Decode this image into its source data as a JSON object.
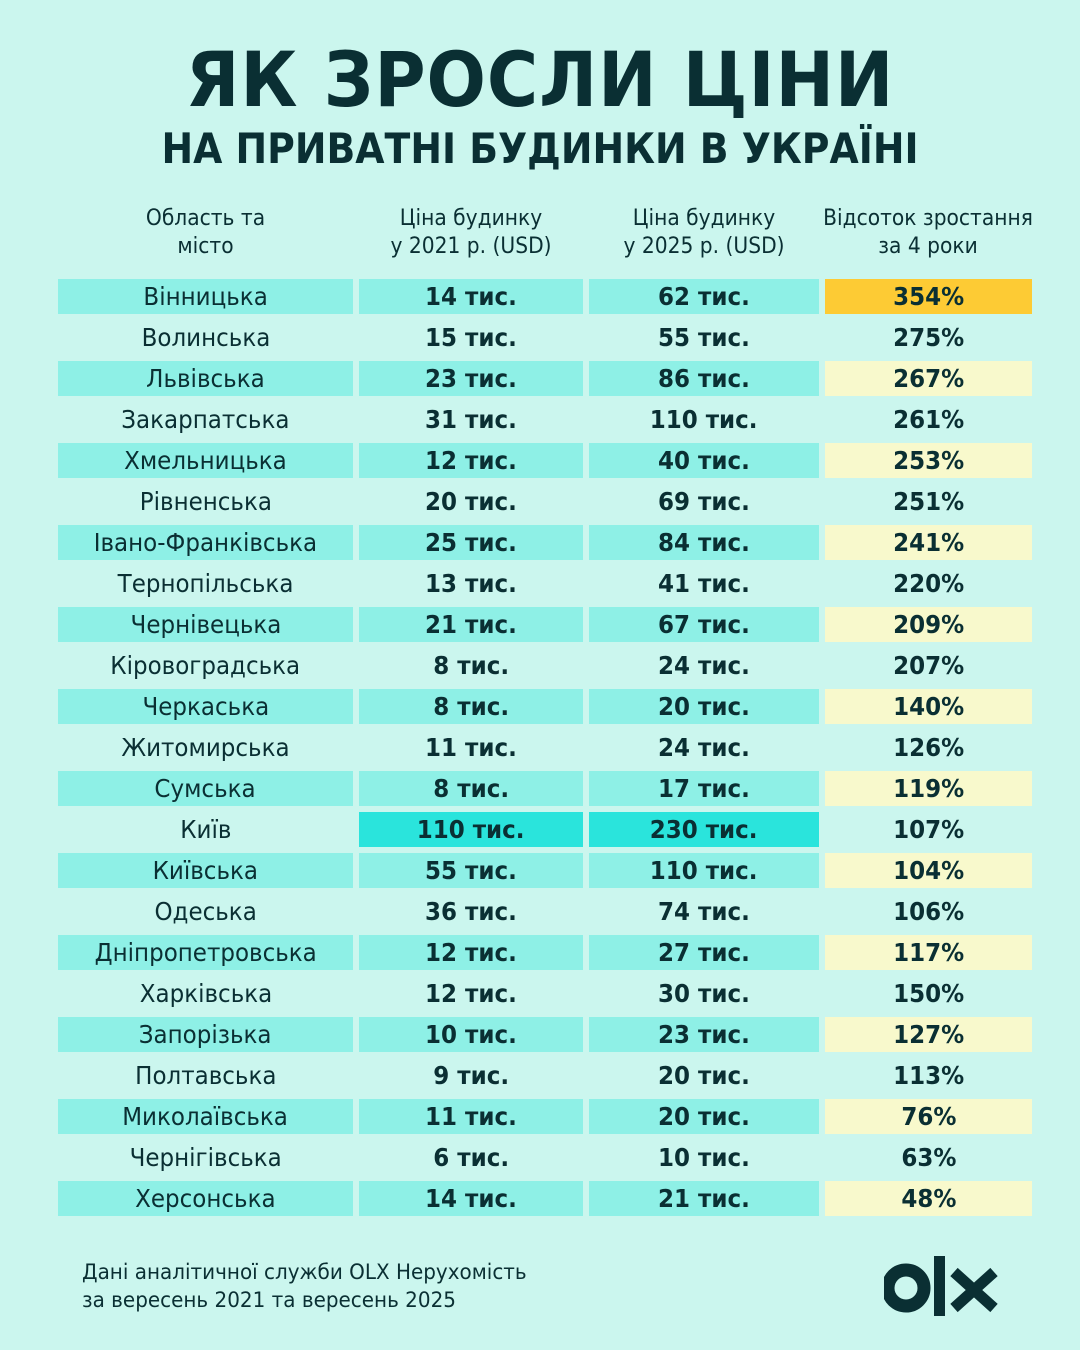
{
  "header": {
    "title": "ЯК ЗРОСЛИ ЦІНИ",
    "subtitle": "НА ПРИВАТНІ БУДИНКИ В УКРАЇНІ"
  },
  "columns": [
    {
      "line1": "Область та",
      "line2": "місто"
    },
    {
      "line1": "Ціна будинку",
      "line2": "у 2021 р. (USD)"
    },
    {
      "line1": "Ціна будинку",
      "line2": "у 2025 р. (USD)"
    },
    {
      "line1": "Відсоток зростання",
      "line2": "за 4 роки"
    }
  ],
  "rows": [
    {
      "region": "Вінницька",
      "price_2021": "14 тис.",
      "price_2025": "62 тис.",
      "growth": "354%"
    },
    {
      "region": "Волинська",
      "price_2021": "15 тис.",
      "price_2025": "55 тис.",
      "growth": "275%"
    },
    {
      "region": "Львівська",
      "price_2021": "23 тис.",
      "price_2025": "86 тис.",
      "growth": "267%"
    },
    {
      "region": "Закарпатська",
      "price_2021": "31 тис.",
      "price_2025": "110 тис.",
      "growth": "261%"
    },
    {
      "region": "Хмельницька",
      "price_2021": "12 тис.",
      "price_2025": "40 тис.",
      "growth": "253%"
    },
    {
      "region": "Рівненська",
      "price_2021": "20 тис.",
      "price_2025": "69 тис.",
      "growth": "251%"
    },
    {
      "region": "Івано-Франківська",
      "price_2021": "25 тис.",
      "price_2025": "84 тис.",
      "growth": "241%"
    },
    {
      "region": "Тернопільська",
      "price_2021": "13 тис.",
      "price_2025": "41 тис.",
      "growth": "220%"
    },
    {
      "region": "Чернівецька",
      "price_2021": "21 тис.",
      "price_2025": "67 тис.",
      "growth": "209%"
    },
    {
      "region": "Кіровоградська",
      "price_2021": "8 тис.",
      "price_2025": "24 тис.",
      "growth": "207%"
    },
    {
      "region": "Черкаська",
      "price_2021": "8 тис.",
      "price_2025": "20 тис.",
      "growth": "140%"
    },
    {
      "region": "Житомирська",
      "price_2021": "11 тис.",
      "price_2025": "24 тис.",
      "growth": "126%"
    },
    {
      "region": "Сумська",
      "price_2021": "8 тис.",
      "price_2025": "17 тис.",
      "growth": "119%"
    },
    {
      "region": "Київ",
      "price_2021": "110 тис.",
      "price_2025": "230 тис.",
      "growth": "107%"
    },
    {
      "region": "Київська",
      "price_2021": "55 тис.",
      "price_2025": "110 тис.",
      "growth": "104%"
    },
    {
      "region": "Одеська",
      "price_2021": "36 тис.",
      "price_2025": "74 тис.",
      "growth": "106%"
    },
    {
      "region": "Дніпропетровська",
      "price_2021": "12 тис.",
      "price_2025": "27 тис.",
      "growth": "117%"
    },
    {
      "region": "Харківська",
      "price_2021": "12 тис.",
      "price_2025": "30 тис.",
      "growth": "150%"
    },
    {
      "region": "Запорізька",
      "price_2021": "10 тис.",
      "price_2025": "23 тис.",
      "growth": "127%"
    },
    {
      "region": "Полтавська",
      "price_2021": "9 тис.",
      "price_2025": "20 тис.",
      "growth": "113%"
    },
    {
      "region": "Миколаївська",
      "price_2021": "11 тис.",
      "price_2025": "20 тис.",
      "growth": "76%"
    },
    {
      "region": "Чернігівська",
      "price_2021": "6 тис.",
      "price_2025": "10 тис.",
      "growth": "63%"
    },
    {
      "region": "Херсонська",
      "price_2021": "14 тис.",
      "price_2025": "21 тис.",
      "growth": "48%"
    }
  ],
  "footer": {
    "line1": "Дані аналітичної служби OLX Нерухомість",
    "line2": "за вересень 2021 та вересень 2025"
  },
  "logo": {
    "name": "olx-logo",
    "text": "OLX"
  },
  "colors": {
    "background": "#cbf6ee",
    "row_shade": "#8ef0e6",
    "growth_shade": "#f8f9cc",
    "top_growth": "#fdcb34",
    "kyiv_highlight": "#2ae4dc",
    "text": "#0a2f33"
  },
  "chart_data": {
    "type": "table",
    "title": "ЯК ЗРОСЛИ ЦІНИ НА ПРИВАТНІ БУДИНКИ В УКРАЇНІ",
    "columns": [
      "Область та місто",
      "Ціна будинку у 2021 р. (USD)",
      "Ціна будинку у 2025 р. (USD)",
      "Відсоток зростання за 4 роки"
    ],
    "categories": [
      "Вінницька",
      "Волинська",
      "Львівська",
      "Закарпатська",
      "Хмельницька",
      "Рівненська",
      "Івано-Франківська",
      "Тернопільська",
      "Чернівецька",
      "Кіровоградська",
      "Черкаська",
      "Житомирська",
      "Сумська",
      "Київ",
      "Київська",
      "Одеська",
      "Дніпропетровська",
      "Харківська",
      "Запорізька",
      "Полтавська",
      "Миколаївська",
      "Чернігівська",
      "Херсонська"
    ],
    "series": [
      {
        "name": "Ціна 2021 (тис. USD)",
        "values": [
          14,
          15,
          23,
          31,
          12,
          20,
          25,
          13,
          21,
          8,
          8,
          11,
          8,
          110,
          55,
          36,
          12,
          12,
          10,
          9,
          11,
          6,
          14
        ]
      },
      {
        "name": "Ціна 2025 (тис. USD)",
        "values": [
          62,
          55,
          86,
          110,
          40,
          69,
          84,
          41,
          67,
          24,
          20,
          24,
          17,
          230,
          110,
          74,
          27,
          30,
          23,
          20,
          20,
          10,
          21
        ]
      },
      {
        "name": "Зростання (%)",
        "values": [
          354,
          275,
          267,
          261,
          253,
          251,
          241,
          220,
          209,
          207,
          140,
          126,
          119,
          107,
          104,
          106,
          117,
          150,
          127,
          113,
          76,
          63,
          48
        ]
      }
    ],
    "source": "Дані аналітичної служби OLX Нерухомість за вересень 2021 та вересень 2025"
  }
}
